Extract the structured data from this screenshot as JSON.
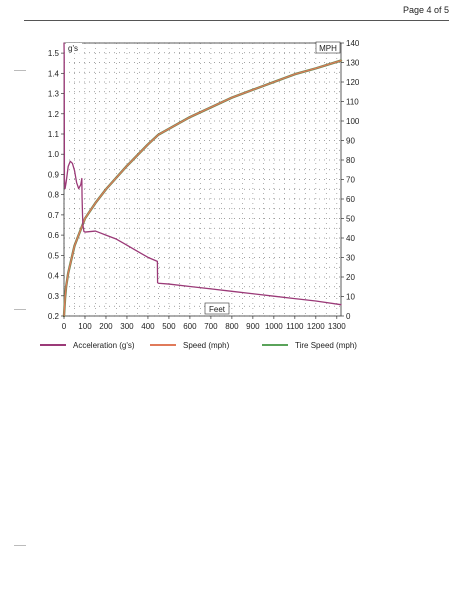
{
  "page": {
    "page_number": "Page 4 of 5"
  },
  "chart_data": {
    "type": "line",
    "title": "",
    "xlabel": "Feet",
    "ylabel_left": "g's",
    "ylabel_right": "MPH",
    "x_ticks": [
      0,
      100,
      200,
      300,
      400,
      500,
      600,
      700,
      800,
      900,
      1000,
      1100,
      1200,
      1300
    ],
    "xlim": [
      0,
      1320
    ],
    "y_left_ticks": [
      0.2,
      0.3,
      0.4,
      0.5,
      0.6,
      0.7,
      0.8,
      0.9,
      1.0,
      1.1,
      1.2,
      1.3,
      1.4,
      1.5
    ],
    "y_left_lim": [
      0.2,
      1.55
    ],
    "y_right_ticks": [
      0,
      10,
      20,
      30,
      40,
      50,
      60,
      70,
      80,
      90,
      100,
      110,
      120,
      130,
      140
    ],
    "y_right_lim": [
      0,
      140
    ],
    "grid": true,
    "legend_position": "bottom",
    "series": [
      {
        "name": "Acceleration (g's)",
        "axis": "left",
        "color": "#9b3a78",
        "x": [
          0,
          1,
          2,
          5,
          10,
          20,
          30,
          40,
          50,
          60,
          70,
          80,
          85,
          86,
          88,
          90,
          95,
          100,
          150,
          200,
          250,
          300,
          350,
          400,
          445,
          446,
          450,
          500,
          600,
          700,
          800,
          900,
          1000,
          1100,
          1200,
          1320
        ],
        "values": [
          1.55,
          1.48,
          0.88,
          0.83,
          0.86,
          0.94,
          0.965,
          0.955,
          0.92,
          0.86,
          0.83,
          0.85,
          0.88,
          0.79,
          0.71,
          0.65,
          0.618,
          0.615,
          0.62,
          0.6,
          0.58,
          0.55,
          0.52,
          0.49,
          0.47,
          0.365,
          0.362,
          0.358,
          0.346,
          0.334,
          0.322,
          0.31,
          0.298,
          0.286,
          0.274,
          0.256
        ]
      },
      {
        "name": "Speed (mph)",
        "axis": "right",
        "color": "#e07a5a",
        "x": [
          0,
          5,
          10,
          20,
          50,
          100,
          150,
          200,
          300,
          400,
          450,
          500,
          600,
          700,
          800,
          900,
          1000,
          1100,
          1200,
          1320
        ],
        "values": [
          0,
          9,
          15,
          22,
          36,
          50,
          58,
          65,
          77,
          88,
          93,
          96,
          102,
          107,
          112,
          116,
          120,
          124,
          127,
          131
        ]
      },
      {
        "name": "Tire Speed (mph)",
        "axis": "right",
        "color": "#5aa35a",
        "x": [
          0,
          5,
          10,
          20,
          50,
          100,
          150,
          200,
          300,
          400,
          450,
          500,
          600,
          700,
          800,
          900,
          1000,
          1100,
          1200,
          1320
        ],
        "values": [
          0,
          9,
          15,
          22,
          36,
          50,
          58,
          65,
          77,
          88,
          93,
          96,
          102,
          107,
          112,
          116,
          120,
          124,
          127,
          131
        ]
      }
    ]
  }
}
